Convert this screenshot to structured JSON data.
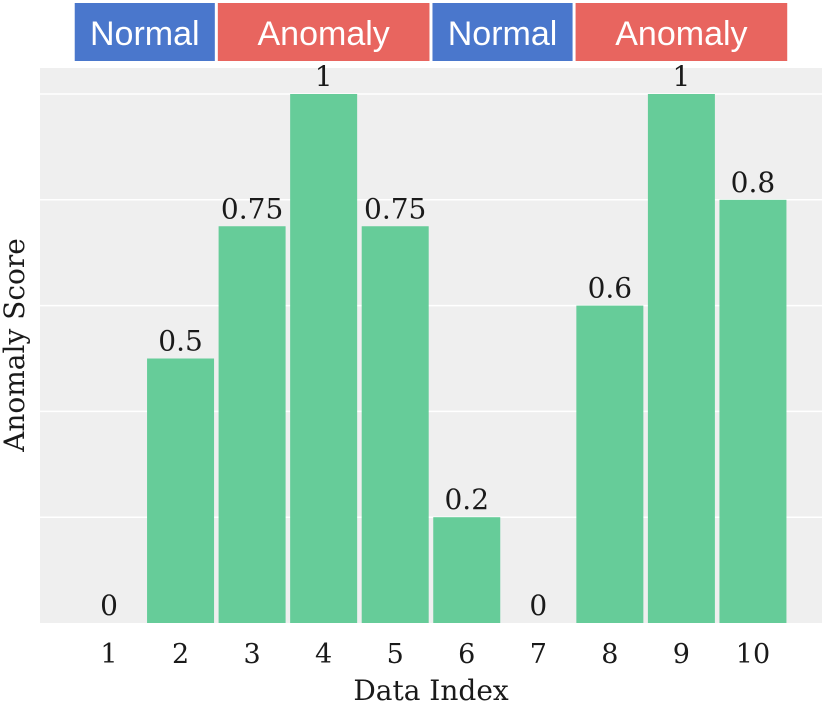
{
  "chart_data": {
    "type": "bar",
    "title": "",
    "xlabel": "Data Index",
    "ylabel": "Anomaly Score",
    "categories": [
      "1",
      "2",
      "3",
      "4",
      "5",
      "6",
      "7",
      "8",
      "9",
      "10"
    ],
    "values": [
      0,
      0.5,
      0.75,
      1,
      0.75,
      0.2,
      0,
      0.6,
      1,
      0.8
    ],
    "data_labels": [
      "0",
      "0.5",
      "0.75",
      "1",
      "0.75",
      "0.2",
      "0",
      "0.6",
      "1",
      "0.8"
    ],
    "ylim": [
      0,
      1.1
    ],
    "y_ticks_shown": false,
    "grid": true,
    "bar_color": "#66cc99",
    "background_color": "#efefef",
    "grid_color": "#ffffff",
    "regions": [
      {
        "label": "Normal",
        "start": 1,
        "end": 2,
        "color": "#4a77cc"
      },
      {
        "label": "Anomaly",
        "start": 3,
        "end": 5,
        "color": "#e8655f"
      },
      {
        "label": "Normal",
        "start": 6,
        "end": 7,
        "color": "#4a77cc"
      },
      {
        "label": "Anomaly",
        "start": 8,
        "end": 10,
        "color": "#e8655f"
      }
    ]
  }
}
